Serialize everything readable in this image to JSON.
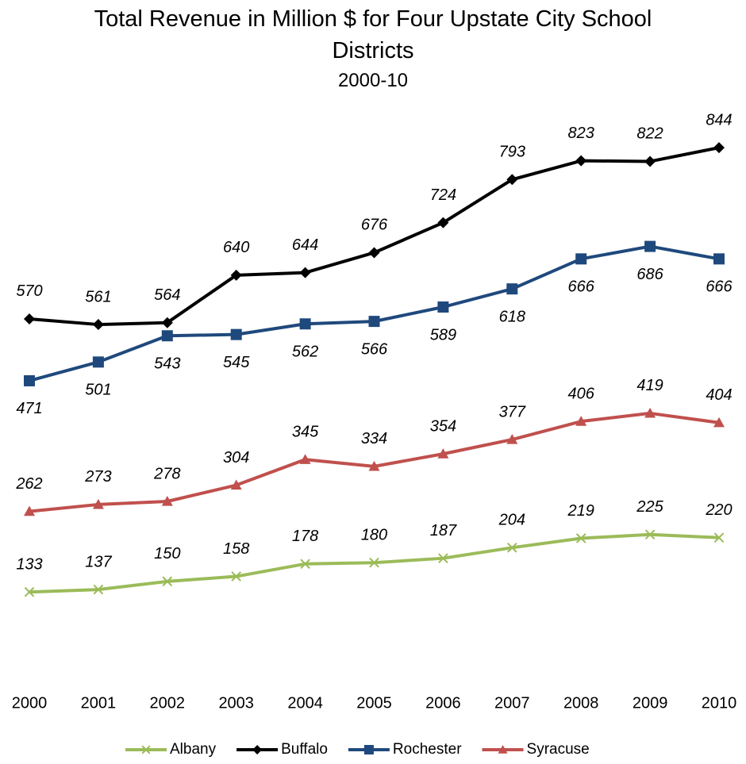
{
  "chart_data": {
    "type": "line",
    "title": "Total Revenue in Million $ for Four Upstate City School Districts",
    "subtitle": "2000-10",
    "categories": [
      "2000",
      "2001",
      "2002",
      "2003",
      "2004",
      "2005",
      "2006",
      "2007",
      "2008",
      "2009",
      "2010"
    ],
    "series": [
      {
        "name": "Albany",
        "color": "#9bbb59",
        "marker": "x",
        "label_position": "above",
        "values": [
          133,
          137,
          150,
          158,
          178,
          180,
          187,
          204,
          219,
          225,
          220
        ]
      },
      {
        "name": "Buffalo",
        "color": "#000000",
        "marker": "diamond",
        "label_position": "above",
        "values": [
          570,
          561,
          564,
          640,
          644,
          676,
          724,
          793,
          823,
          822,
          844
        ]
      },
      {
        "name": "Rochester",
        "color": "#1f497d",
        "marker": "square",
        "label_position": "below",
        "values": [
          471,
          501,
          543,
          545,
          562,
          566,
          589,
          618,
          666,
          686,
          666
        ]
      },
      {
        "name": "Syracuse",
        "color": "#c0504d",
        "marker": "triangle",
        "label_position": "above",
        "values": [
          262,
          273,
          278,
          304,
          345,
          334,
          354,
          377,
          406,
          419,
          404
        ]
      }
    ],
    "ylim": [
      0,
      900
    ],
    "legend": "bottom"
  }
}
